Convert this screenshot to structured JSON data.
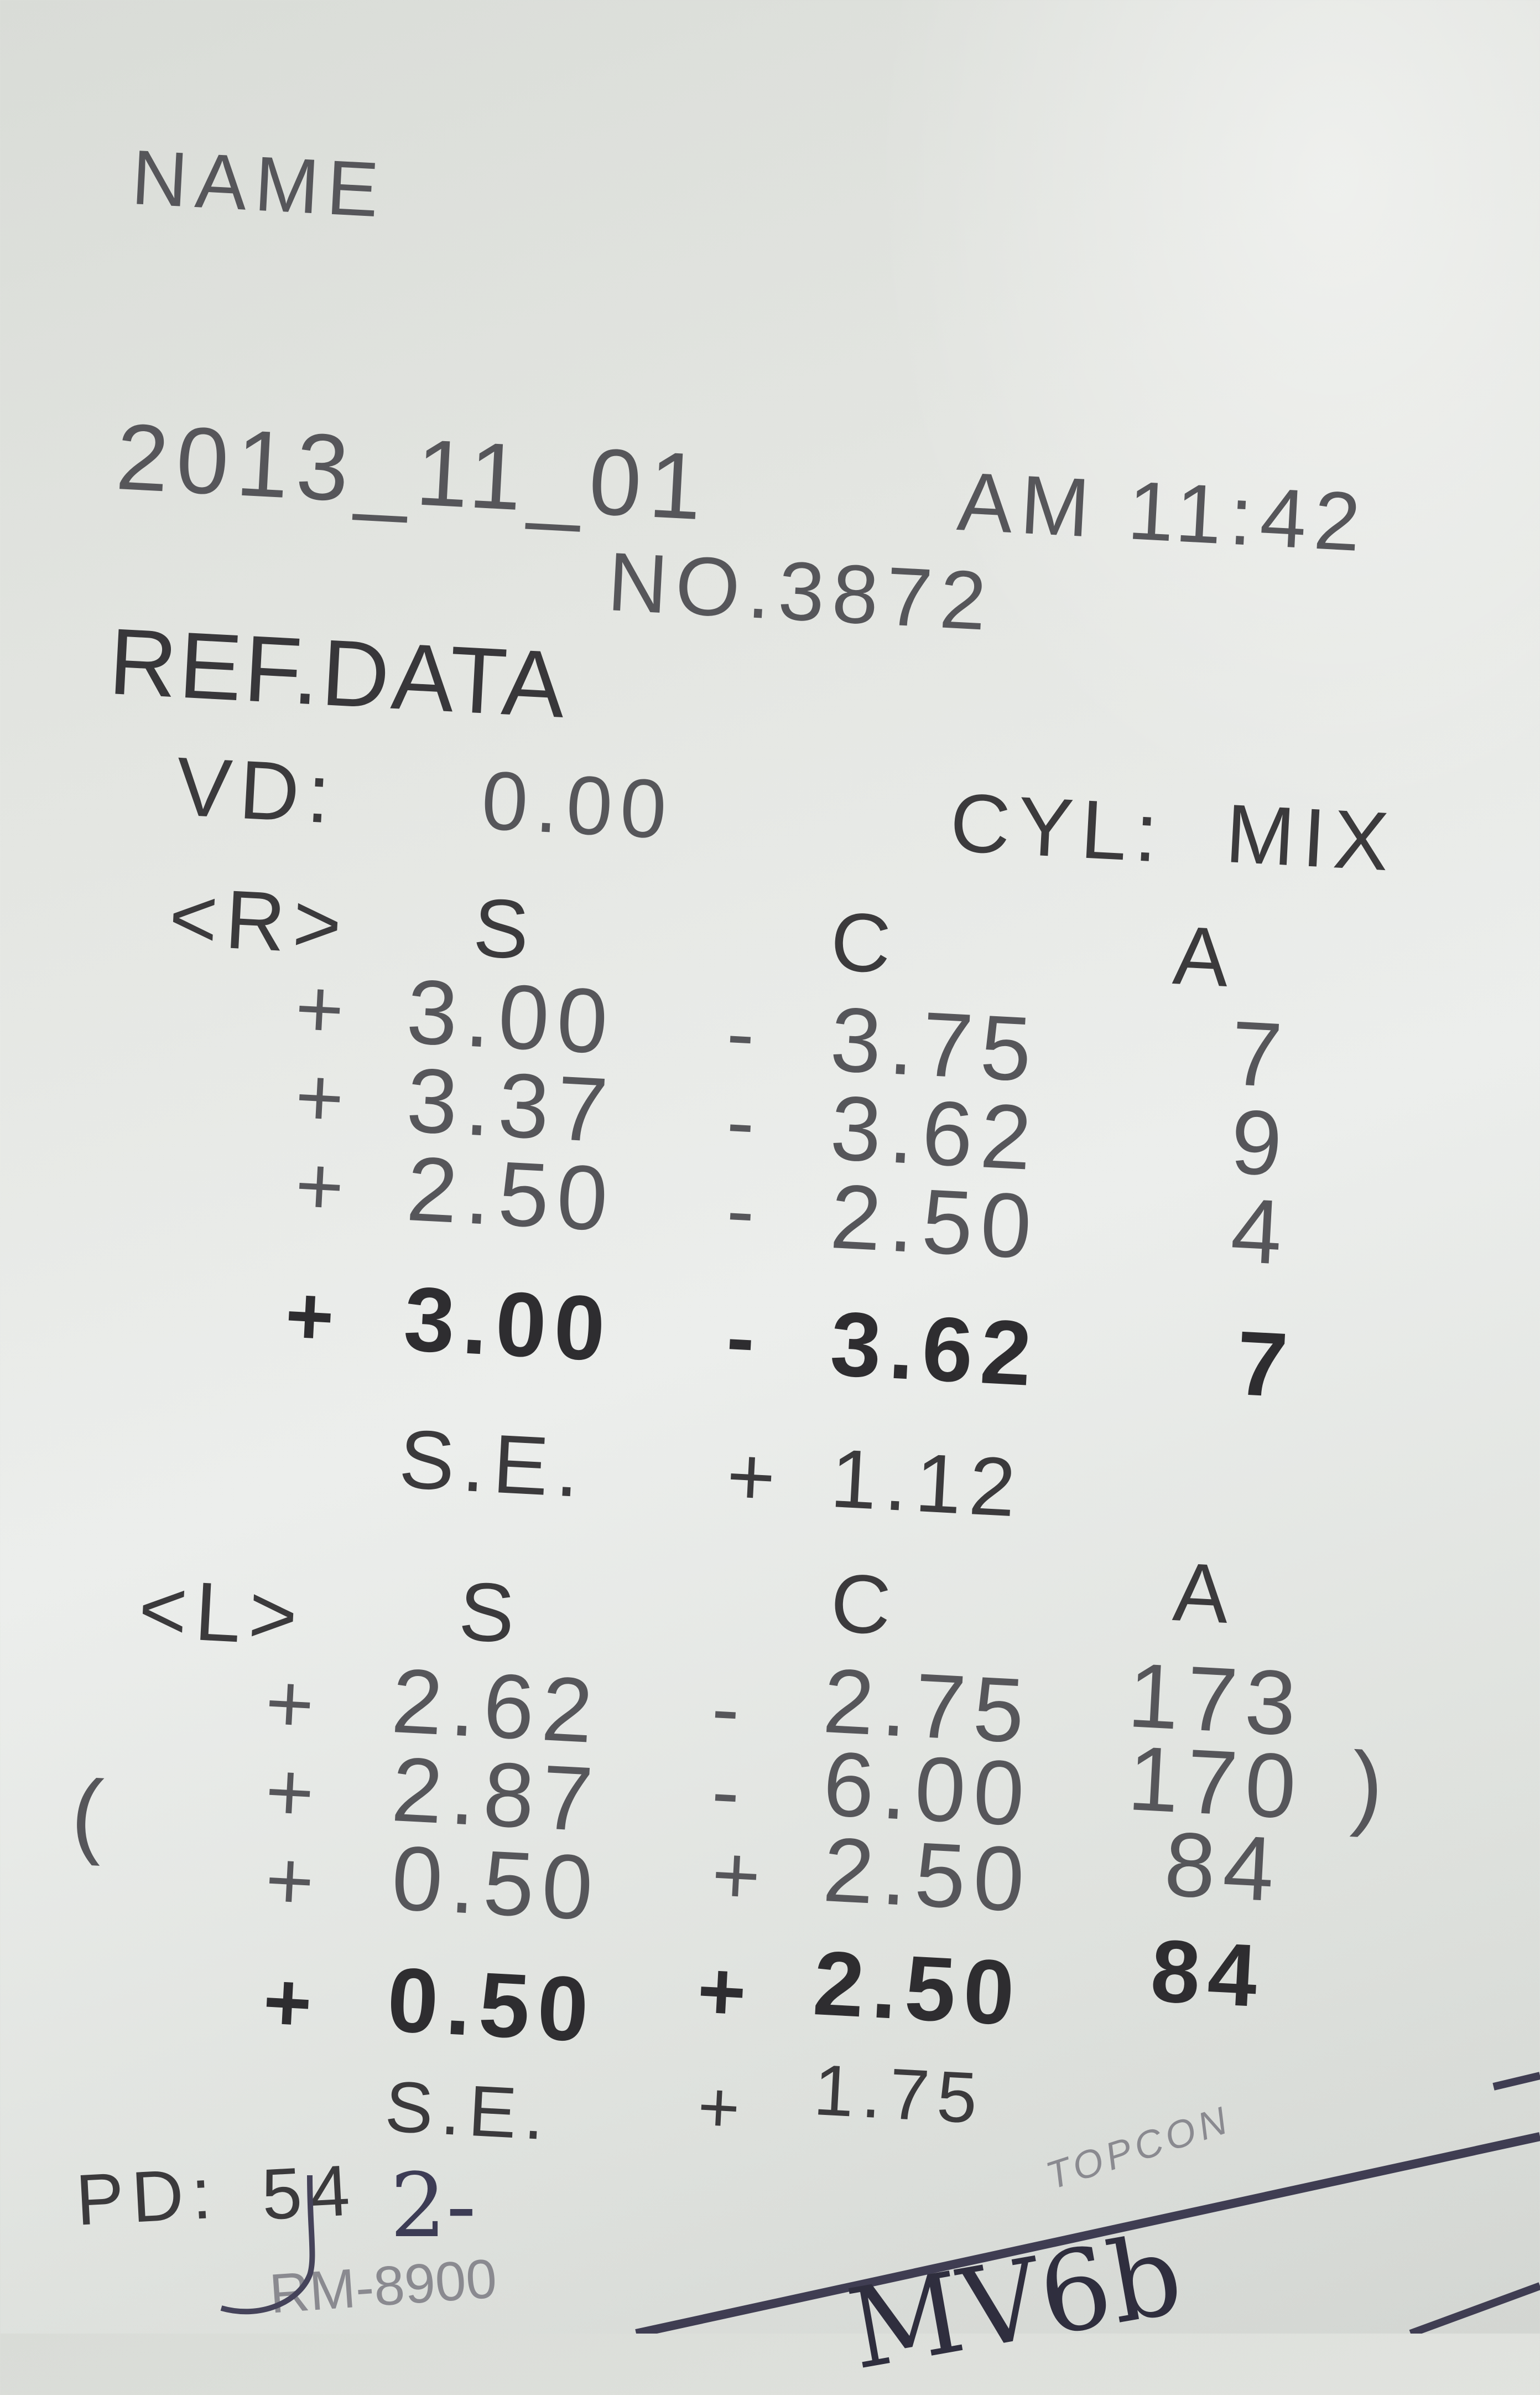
{
  "receipt": {
    "name_label": "NAME",
    "date": "2013_11_01",
    "time": "AM 11:42",
    "number": "NO.3872",
    "section_title": "REF.DATA",
    "vd_label": "VD:",
    "vd_value": "0.00",
    "cyl_label": "CYL:",
    "cyl_value": "MIX",
    "right_eye": {
      "label": "<R>",
      "headers": [
        "S",
        "C",
        "A"
      ],
      "rows": [
        {
          "s_sign": "+",
          "s": "3.00",
          "c_sign": "-",
          "c": "3.75",
          "a": "7"
        },
        {
          "s_sign": "+",
          "s": "3.37",
          "c_sign": "-",
          "c": "3.62",
          "a": "9"
        },
        {
          "s_sign": "+",
          "s": "2.50",
          "c_sign": "-",
          "c": "2.50",
          "a": "4"
        }
      ],
      "average": {
        "s_sign": "+",
        "s": "3.00",
        "c_sign": "-",
        "c": "3.62",
        "a": "7"
      },
      "se_label": "S.E.",
      "se_sign": "+",
      "se_value": "1.12"
    },
    "left_eye": {
      "label": "<L>",
      "headers": [
        "S",
        "C",
        "A"
      ],
      "rows": [
        {
          "s_sign": "+",
          "s": "2.62",
          "c_sign": "-",
          "c": "2.75",
          "a": "173"
        },
        {
          "s_sign": "+",
          "s": "2.87",
          "c_sign": "-",
          "c": "6.00",
          "a": "170"
        },
        {
          "s_sign": "+",
          "s": "0.50",
          "c_sign": "+",
          "c": "2.50",
          "a": "84"
        }
      ],
      "bracket_open": "(",
      "bracket_close": ")",
      "average": {
        "s_sign": "+",
        "s": "0.50",
        "c_sign": "+",
        "c": "2.50",
        "a": "84"
      },
      "se_label": "S.E.",
      "se_sign": "+",
      "se_value": "1.75"
    },
    "pd_label": "PD:",
    "pd_value": "54",
    "model": "RM-8900",
    "brand": "TOPCON"
  },
  "handwriting": {
    "pd_note": "2-",
    "bottom_note": "MV6b"
  },
  "colors": {
    "ink": "#3b3a3c",
    "pen": "#3d3c55",
    "paper": "#e4e6e2"
  }
}
